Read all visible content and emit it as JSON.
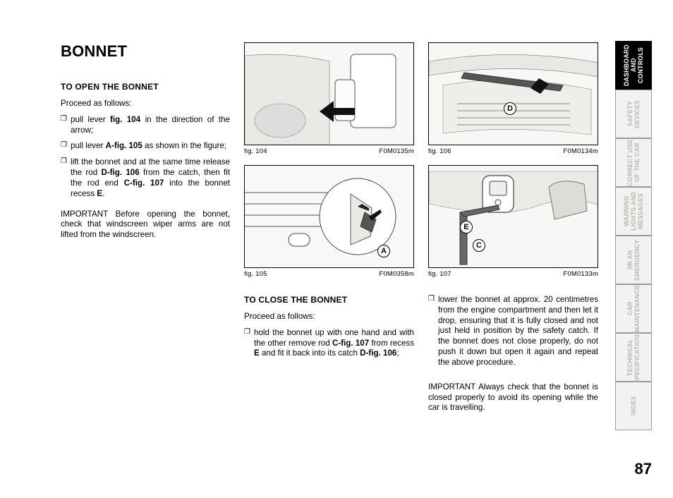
{
  "title": "BONNET",
  "section_open": "TO OPEN THE BONNET",
  "proceed": "Proceed as follows:",
  "open_items": [
    "pull lever <b>fig. 104</b> in the direction of the arrow;",
    "pull lever <b>A-fig. 105</b> as shown in the figure;",
    "lift the bonnet and at the same time release the rod <b>D-fig. 106</b> from the catch, then fit the rod end <b>C-fig. 107</b> into the bonnet recess <b>E</b>."
  ],
  "open_important": "IMPORTANT Before opening the bonnet, check that windscreen wiper arms are not lifted from the windscreen.",
  "section_close": "TO CLOSE THE BONNET",
  "close_items": [
    "hold the bonnet up with one hand and with the other remove rod <b>C-fig. 107</b> from recess <b>E</b> and fit it back into its catch <b>D-fig. 106</b>;"
  ],
  "close_item_col3": "lower the bonnet at approx. 20 centimetres from the engine compartment and then let it drop, ensuring that it is fully closed and not just held in position by the safety catch. If the bonnet does not close properly, do not push it down but open it again and repeat the above procedure.",
  "close_important": "IMPORTANT Always check that the bonnet is closed properly to avoid its opening while the car is travelling.",
  "figs": {
    "f104": {
      "cap": "fig. 104",
      "code": "F0M0135m"
    },
    "f105": {
      "cap": "fig. 105",
      "code": "F0M0358m"
    },
    "f106": {
      "cap": "fig. 106",
      "code": "F0M0134m"
    },
    "f107": {
      "cap": "fig. 107",
      "code": "F0M0133m"
    }
  },
  "fig_labels": {
    "A": "A",
    "C": "C",
    "D": "D",
    "E": "E"
  },
  "tabs": [
    {
      "label": "DASHBOARD\nAND CONTROLS",
      "active": true
    },
    {
      "label": "SAFETY\nDEVICES",
      "active": false
    },
    {
      "label": "CORRECT USE\nOF THE CAR",
      "active": false
    },
    {
      "label": "WARNING\nLIGHTS AND\nMESSAGES",
      "active": false
    },
    {
      "label": "IIN AN\nEMERGENCY",
      "active": false
    },
    {
      "label": "CAR\nMAINTENANCE",
      "active": false
    },
    {
      "label": "TECHNICAL\nSPECIFICATIONS",
      "active": false
    },
    {
      "label": "INDEX",
      "active": false
    }
  ],
  "pagenum": "87"
}
